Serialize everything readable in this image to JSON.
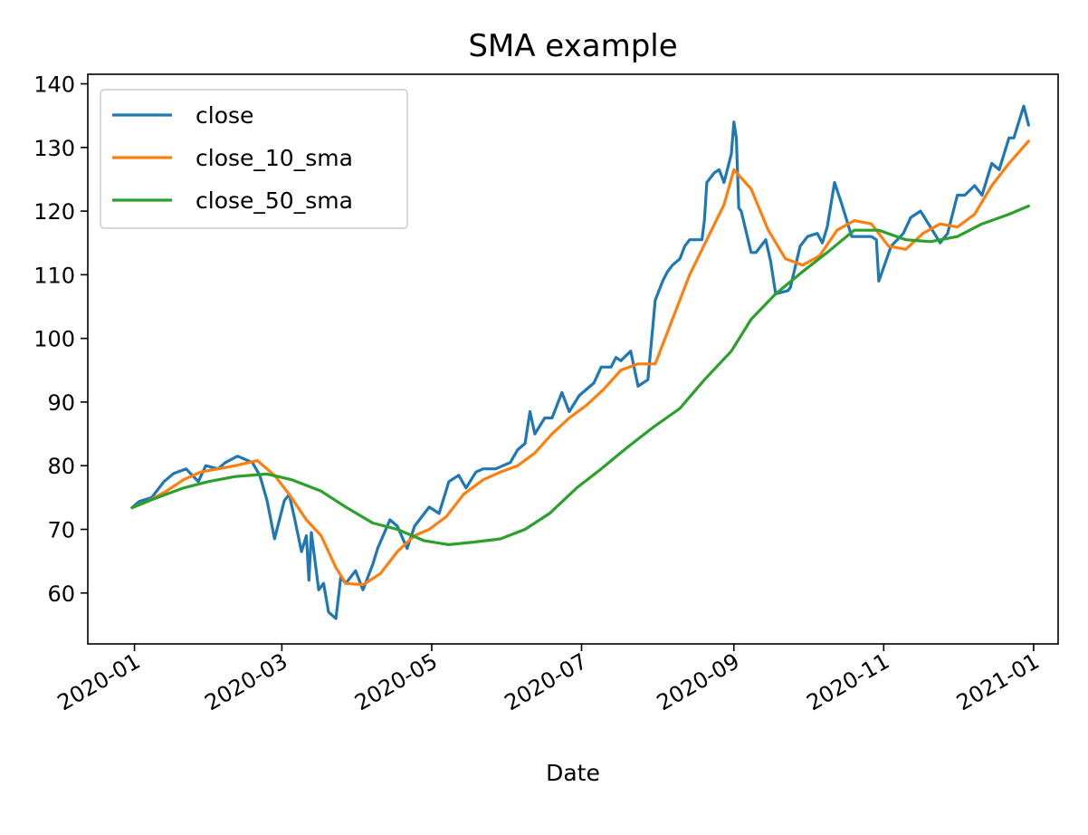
{
  "chart_data": {
    "type": "line",
    "title": "SMA example",
    "xlabel": "Date",
    "ylabel": "",
    "grid": false,
    "legend_position": "top-left",
    "xlim": [
      "2019-12-13",
      "2021-01-11"
    ],
    "ylim": [
      52,
      141.5
    ],
    "x_ticks": [
      "2020-01",
      "2020-03",
      "2020-05",
      "2020-07",
      "2020-09",
      "2020-11",
      "2021-01"
    ],
    "y_ticks": [
      60,
      70,
      80,
      90,
      100,
      110,
      120,
      130,
      140
    ],
    "series": [
      {
        "name": "close",
        "color": "#1f77b4",
        "points": [
          [
            "2019-12-31",
            73.4
          ],
          [
            "2020-01-03",
            74.4
          ],
          [
            "2020-01-08",
            75.0
          ],
          [
            "2020-01-13",
            77.5
          ],
          [
            "2020-01-17",
            78.8
          ],
          [
            "2020-01-22",
            79.5
          ],
          [
            "2020-01-27",
            77.5
          ],
          [
            "2020-01-30",
            80.0
          ],
          [
            "2020-02-04",
            79.5
          ],
          [
            "2020-02-07",
            80.5
          ],
          [
            "2020-02-12",
            81.5
          ],
          [
            "2020-02-18",
            80.5
          ],
          [
            "2020-02-21",
            78.5
          ],
          [
            "2020-02-24",
            74.5
          ],
          [
            "2020-02-27",
            68.5
          ],
          [
            "2020-03-02",
            74.5
          ],
          [
            "2020-03-04",
            75.5
          ],
          [
            "2020-03-06",
            72.0
          ],
          [
            "2020-03-09",
            66.5
          ],
          [
            "2020-03-11",
            69.0
          ],
          [
            "2020-03-12",
            62.0
          ],
          [
            "2020-03-13",
            69.5
          ],
          [
            "2020-03-16",
            60.5
          ],
          [
            "2020-03-18",
            61.5
          ],
          [
            "2020-03-20",
            57.0
          ],
          [
            "2020-03-23",
            56.0
          ],
          [
            "2020-03-25",
            62.5
          ],
          [
            "2020-03-27",
            61.5
          ],
          [
            "2020-03-31",
            63.5
          ],
          [
            "2020-04-03",
            60.5
          ],
          [
            "2020-04-07",
            64.5
          ],
          [
            "2020-04-09",
            67.0
          ],
          [
            "2020-04-14",
            71.5
          ],
          [
            "2020-04-17",
            70.5
          ],
          [
            "2020-04-21",
            67.0
          ],
          [
            "2020-04-24",
            70.5
          ],
          [
            "2020-04-30",
            73.5
          ],
          [
            "2020-05-04",
            72.5
          ],
          [
            "2020-05-08",
            77.5
          ],
          [
            "2020-05-12",
            78.5
          ],
          [
            "2020-05-15",
            76.5
          ],
          [
            "2020-05-19",
            79.0
          ],
          [
            "2020-05-22",
            79.5
          ],
          [
            "2020-05-27",
            79.5
          ],
          [
            "2020-06-02",
            80.5
          ],
          [
            "2020-06-05",
            82.5
          ],
          [
            "2020-06-08",
            83.5
          ],
          [
            "2020-06-10",
            88.5
          ],
          [
            "2020-06-12",
            85.0
          ],
          [
            "2020-06-16",
            87.5
          ],
          [
            "2020-06-19",
            87.5
          ],
          [
            "2020-06-23",
            91.5
          ],
          [
            "2020-06-26",
            88.5
          ],
          [
            "2020-06-30",
            91.0
          ],
          [
            "2020-07-06",
            93.0
          ],
          [
            "2020-07-09",
            95.5
          ],
          [
            "2020-07-13",
            95.5
          ],
          [
            "2020-07-15",
            97.0
          ],
          [
            "2020-07-17",
            96.5
          ],
          [
            "2020-07-21",
            98.0
          ],
          [
            "2020-07-24",
            92.5
          ],
          [
            "2020-07-28",
            93.5
          ],
          [
            "2020-07-31",
            106.0
          ],
          [
            "2020-08-03",
            109.0
          ],
          [
            "2020-08-05",
            110.5
          ],
          [
            "2020-08-07",
            111.5
          ],
          [
            "2020-08-10",
            112.5
          ],
          [
            "2020-08-12",
            114.5
          ],
          [
            "2020-08-14",
            115.5
          ],
          [
            "2020-08-19",
            115.5
          ],
          [
            "2020-08-20",
            118.5
          ],
          [
            "2020-08-21",
            124.5
          ],
          [
            "2020-08-24",
            126.0
          ],
          [
            "2020-08-26",
            126.5
          ],
          [
            "2020-08-28",
            124.5
          ],
          [
            "2020-08-31",
            129.0
          ],
          [
            "2020-09-01",
            134.0
          ],
          [
            "2020-09-02",
            131.5
          ],
          [
            "2020-09-03",
            120.5
          ],
          [
            "2020-09-04",
            120.0
          ],
          [
            "2020-09-08",
            113.5
          ],
          [
            "2020-09-10",
            113.5
          ],
          [
            "2020-09-14",
            115.5
          ],
          [
            "2020-09-16",
            112.0
          ],
          [
            "2020-09-18",
            107.0
          ],
          [
            "2020-09-23",
            107.5
          ],
          [
            "2020-09-24",
            108.0
          ],
          [
            "2020-09-28",
            114.5
          ],
          [
            "2020-10-01",
            116.0
          ],
          [
            "2020-10-05",
            116.5
          ],
          [
            "2020-10-07",
            115.0
          ],
          [
            "2020-10-09",
            117.5
          ],
          [
            "2020-10-12",
            124.5
          ],
          [
            "2020-10-15",
            121.0
          ],
          [
            "2020-10-19",
            116.0
          ],
          [
            "2020-10-22",
            116.0
          ],
          [
            "2020-10-27",
            116.0
          ],
          [
            "2020-10-29",
            115.5
          ],
          [
            "2020-10-30",
            109.0
          ],
          [
            "2020-11-04",
            114.5
          ],
          [
            "2020-11-09",
            116.5
          ],
          [
            "2020-11-12",
            119.0
          ],
          [
            "2020-11-16",
            120.0
          ],
          [
            "2020-11-20",
            117.5
          ],
          [
            "2020-11-24",
            115.0
          ],
          [
            "2020-11-27",
            116.5
          ],
          [
            "2020-12-01",
            122.5
          ],
          [
            "2020-12-04",
            122.5
          ],
          [
            "2020-12-08",
            124.0
          ],
          [
            "2020-12-11",
            122.5
          ],
          [
            "2020-12-15",
            127.5
          ],
          [
            "2020-12-18",
            126.5
          ],
          [
            "2020-12-22",
            131.5
          ],
          [
            "2020-12-24",
            131.5
          ],
          [
            "2020-12-28",
            136.5
          ],
          [
            "2020-12-30",
            133.5
          ]
        ]
      },
      {
        "name": "close_10_sma",
        "color": "#ff7f0e",
        "points": [
          [
            "2019-12-31",
            73.4
          ],
          [
            "2020-01-07",
            74.5
          ],
          [
            "2020-01-14",
            76.0
          ],
          [
            "2020-01-21",
            77.8
          ],
          [
            "2020-01-28",
            79.0
          ],
          [
            "2020-02-04",
            79.5
          ],
          [
            "2020-02-11",
            80.0
          ],
          [
            "2020-02-20",
            80.8
          ],
          [
            "2020-02-27",
            78.5
          ],
          [
            "2020-03-04",
            75.5
          ],
          [
            "2020-03-11",
            71.5
          ],
          [
            "2020-03-17",
            69.0
          ],
          [
            "2020-03-23",
            64.0
          ],
          [
            "2020-03-27",
            61.5
          ],
          [
            "2020-04-03",
            61.3
          ],
          [
            "2020-04-10",
            63.0
          ],
          [
            "2020-04-17",
            66.5
          ],
          [
            "2020-04-24",
            69.0
          ],
          [
            "2020-04-30",
            70.0
          ],
          [
            "2020-05-07",
            72.0
          ],
          [
            "2020-05-14",
            75.5
          ],
          [
            "2020-05-22",
            77.8
          ],
          [
            "2020-05-29",
            79.0
          ],
          [
            "2020-06-05",
            80.0
          ],
          [
            "2020-06-12",
            82.0
          ],
          [
            "2020-06-19",
            85.0
          ],
          [
            "2020-06-26",
            87.5
          ],
          [
            "2020-07-03",
            89.5
          ],
          [
            "2020-07-10",
            92.0
          ],
          [
            "2020-07-17",
            95.0
          ],
          [
            "2020-07-24",
            96.0
          ],
          [
            "2020-07-31",
            96.0
          ],
          [
            "2020-08-07",
            103.0
          ],
          [
            "2020-08-14",
            110.0
          ],
          [
            "2020-08-21",
            115.5
          ],
          [
            "2020-08-28",
            121.0
          ],
          [
            "2020-09-01",
            126.5
          ],
          [
            "2020-09-08",
            123.5
          ],
          [
            "2020-09-15",
            117.0
          ],
          [
            "2020-09-22",
            112.5
          ],
          [
            "2020-09-29",
            111.5
          ],
          [
            "2020-10-06",
            113.0
          ],
          [
            "2020-10-13",
            117.0
          ],
          [
            "2020-10-20",
            118.5
          ],
          [
            "2020-10-27",
            118.0
          ],
          [
            "2020-11-03",
            114.5
          ],
          [
            "2020-11-10",
            114.0
          ],
          [
            "2020-11-17",
            116.5
          ],
          [
            "2020-11-24",
            118.0
          ],
          [
            "2020-12-01",
            117.5
          ],
          [
            "2020-12-08",
            119.5
          ],
          [
            "2020-12-15",
            124.0
          ],
          [
            "2020-12-22",
            127.5
          ],
          [
            "2020-12-30",
            131.0
          ]
        ]
      },
      {
        "name": "close_50_sma",
        "color": "#2ca02c",
        "points": [
          [
            "2019-12-31",
            73.4
          ],
          [
            "2020-01-07",
            74.5
          ],
          [
            "2020-01-14",
            75.5
          ],
          [
            "2020-01-21",
            76.5
          ],
          [
            "2020-01-31",
            77.5
          ],
          [
            "2020-02-11",
            78.3
          ],
          [
            "2020-02-24",
            78.7
          ],
          [
            "2020-03-05",
            77.8
          ],
          [
            "2020-03-17",
            76.0
          ],
          [
            "2020-03-27",
            73.5
          ],
          [
            "2020-04-07",
            71.0
          ],
          [
            "2020-04-17",
            70.0
          ],
          [
            "2020-04-28",
            68.2
          ],
          [
            "2020-05-08",
            67.6
          ],
          [
            "2020-05-18",
            68.0
          ],
          [
            "2020-05-29",
            68.5
          ],
          [
            "2020-06-08",
            70.0
          ],
          [
            "2020-06-18",
            72.5
          ],
          [
            "2020-06-29",
            76.5
          ],
          [
            "2020-07-09",
            79.5
          ],
          [
            "2020-07-20",
            83.0
          ],
          [
            "2020-07-30",
            86.0
          ],
          [
            "2020-08-10",
            89.0
          ],
          [
            "2020-08-20",
            93.5
          ],
          [
            "2020-08-31",
            98.0
          ],
          [
            "2020-09-08",
            103.0
          ],
          [
            "2020-09-18",
            107.0
          ],
          [
            "2020-09-29",
            110.5
          ],
          [
            "2020-10-09",
            113.5
          ],
          [
            "2020-10-20",
            117.0
          ],
          [
            "2020-10-30",
            117.0
          ],
          [
            "2020-11-10",
            115.5
          ],
          [
            "2020-11-20",
            115.2
          ],
          [
            "2020-12-01",
            116.0
          ],
          [
            "2020-12-11",
            118.0
          ],
          [
            "2020-12-22",
            119.5
          ],
          [
            "2020-12-30",
            120.8
          ]
        ]
      }
    ]
  }
}
